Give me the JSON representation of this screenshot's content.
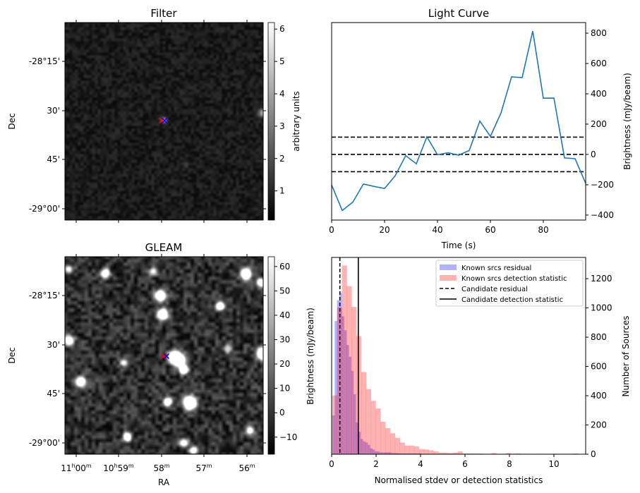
{
  "chart_data": [
    {
      "type": "heatmap",
      "title": "Filter",
      "ylabel": "Dec",
      "yticks": [
        "-28°15'",
        "30'",
        "45'",
        "-29°00'"
      ],
      "colorbar": {
        "label": "arbitrary units",
        "ticks": [
          "1",
          "2",
          "3",
          "4",
          "5",
          "6"
        ],
        "range": [
          0.1,
          6.2
        ],
        "cmap": "gray"
      },
      "markers": [
        {
          "symbol": "x",
          "color": "#ff0000"
        },
        {
          "symbol": "x",
          "color": "#0000ff"
        }
      ]
    },
    {
      "type": "line",
      "title": "Light Curve",
      "xlabel": "Time (s)",
      "ylabel": "Brightness (mJy/beam)",
      "xlim": [
        0,
        96
      ],
      "ylim": [
        -433,
        870
      ],
      "xticks": [
        "0",
        "20",
        "40",
        "60",
        "80"
      ],
      "yticks": [
        "-400",
        "-200",
        "0",
        "200",
        "400",
        "600",
        "800"
      ],
      "x": [
        0,
        4,
        8,
        12,
        16,
        20,
        24,
        28,
        32,
        36,
        40,
        44,
        48,
        52,
        56,
        60,
        64,
        68,
        72,
        76,
        80,
        84,
        88,
        92,
        96
      ],
      "y": [
        -202,
        -370,
        -315,
        -195,
        -211,
        -225,
        -141,
        -8,
        -62,
        116,
        -2,
        11,
        -5,
        26,
        220,
        119,
        274,
        512,
        507,
        814,
        371,
        372,
        -23,
        -28,
        -191
      ],
      "color": "#1f77b4",
      "hlines": [
        -114,
        0,
        114
      ]
    },
    {
      "type": "heatmap",
      "title": "GLEAM",
      "xlabel": "RA",
      "ylabel": "Dec",
      "yticks": [
        "-28°15'",
        "30'",
        "45'",
        "-29°00'"
      ],
      "xticks": [
        {
          "h": "11",
          "hs": "h",
          "m": "00",
          "ms": "m"
        },
        {
          "h": "10",
          "hs": "h",
          "m": "59",
          "ms": "m"
        },
        {
          "h": "",
          "hs": "",
          "m": "58",
          "ms": "m"
        },
        {
          "h": "",
          "hs": "",
          "m": "57",
          "ms": "m"
        },
        {
          "h": "",
          "hs": "",
          "m": "56",
          "ms": "m"
        }
      ],
      "colorbar": {
        "ticks": [
          "−10",
          "0",
          "10",
          "20",
          "30",
          "40",
          "50",
          "60"
        ],
        "range": [
          -17,
          64
        ],
        "cmap": "gray"
      },
      "markers": [
        {
          "symbol": "x",
          "color": "#ff0000"
        },
        {
          "symbol": "x",
          "color": "#0000ff"
        }
      ]
    },
    {
      "type": "bar",
      "subtype": "histogram",
      "xlabel": "Normalised stdev or detection statistics",
      "ylabel_left": "Brightness (mJy/beam)",
      "ylabel_right": "Number of Sources",
      "xlim": [
        0,
        11.43
      ],
      "ylim": [
        0,
        1345
      ],
      "xticks": [
        "0",
        "2",
        "4",
        "6",
        "8",
        "10"
      ],
      "yticks": [
        "0",
        "200",
        "400",
        "600",
        "800",
        "1000",
        "1200"
      ],
      "series": [
        {
          "name": "Known srcs residual",
          "color": "#0000ff",
          "alpha": 0.3,
          "bin_start": 0.03,
          "bin_width": 0.106,
          "values": [
            265,
            911,
            1052,
            1104,
            943,
            847,
            747,
            667,
            570,
            410,
            217,
            153,
            104,
            88,
            80,
            64,
            40,
            32,
            19,
            19,
            13,
            13,
            13,
            13,
            13,
            8,
            8,
            8,
            5,
            5,
            5,
            5,
            5,
            5,
            5,
            5,
            5,
            5
          ]
        },
        {
          "name": "Known srcs detection statistic",
          "color": "#ff0000",
          "alpha": 0.3,
          "bin_start": 0.03,
          "bin_width": 0.217,
          "values": [
            402,
            1004,
            1290,
            1149,
            1007,
            808,
            562,
            445,
            365,
            313,
            222,
            178,
            143,
            112,
            80,
            59,
            59,
            53,
            35,
            32,
            27,
            19,
            11,
            11,
            8,
            11,
            19,
            5,
            5,
            5,
            5,
            3,
            3,
            8,
            3,
            3,
            8,
            3,
            5,
            3,
            3,
            3,
            3,
            3,
            3,
            3,
            3,
            3,
            3,
            3,
            5
          ]
        }
      ],
      "vlines": [
        {
          "name": "Candidate residual",
          "x": 0.37,
          "style": "dashed"
        },
        {
          "name": "Candidate detection statistic",
          "x": 1.2,
          "style": "solid"
        }
      ],
      "legend": {
        "position": "top-right"
      }
    }
  ]
}
